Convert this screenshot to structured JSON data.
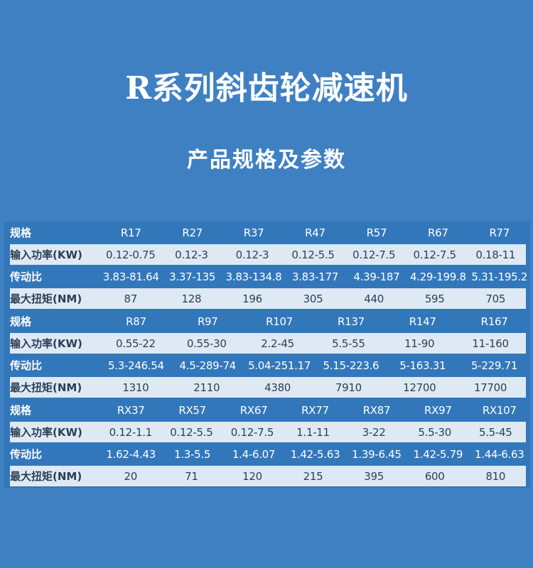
{
  "title": "R系列斜齿轮减速机",
  "subtitle": "产品规格及参数",
  "colors": {
    "background": "#3f80c2",
    "table_bg": "#3377bb",
    "light_row": "#dfe9f4"
  },
  "row_labels": [
    "规格",
    "输入功率(KW)",
    "传动比",
    "最大扭矩(NM)"
  ],
  "blocks": [
    {
      "models": [
        "R17",
        "R27",
        "R37",
        "R47",
        "R57",
        "R67",
        "R77"
      ],
      "power": [
        "0.12-0.75",
        "0.12-3",
        "0.12-3",
        "0.12-5.5",
        "0.12-7.5",
        "0.12-7.5",
        "0.18-11"
      ],
      "ratio": [
        "3.83-81.64",
        "3.37-135",
        "3.83-134.8",
        "3.83-177",
        "4.39-187",
        "4.29-199.8",
        "5.31-195.2"
      ],
      "torque": [
        "87",
        "128",
        "196",
        "305",
        "440",
        "595",
        "705"
      ]
    },
    {
      "models": [
        "R87",
        "R97",
        "R107",
        "R137",
        "R147",
        "R167"
      ],
      "power": [
        "0.55-22",
        "0.55-30",
        "2.2-45",
        "5.5-55",
        "11-90",
        "11-160"
      ],
      "ratio": [
        "5.3-246.54",
        "4.5-289-74",
        "5.04-251.17",
        "5.15-223.6",
        "5-163.31",
        "5-229.71"
      ],
      "torque": [
        "1310",
        "2110",
        "4380",
        "7910",
        "12700",
        "17700"
      ]
    },
    {
      "models": [
        "RX37",
        "RX57",
        "RX67",
        "RX77",
        "RX87",
        "RX97",
        "RX107"
      ],
      "power": [
        "0.12-1.1",
        "0.12-5.5",
        "0.12-7.5",
        "1.1-11",
        "3-22",
        "5.5-30",
        "5.5-45"
      ],
      "ratio": [
        "1.62-4.43",
        "1.3-5.5",
        "1.4-6.07",
        "1.42-5.63",
        "1.39-6.45",
        "1.42-5.79",
        "1.44-6.63"
      ],
      "torque": [
        "20",
        "71",
        "120",
        "215",
        "395",
        "600",
        "810"
      ]
    }
  ]
}
